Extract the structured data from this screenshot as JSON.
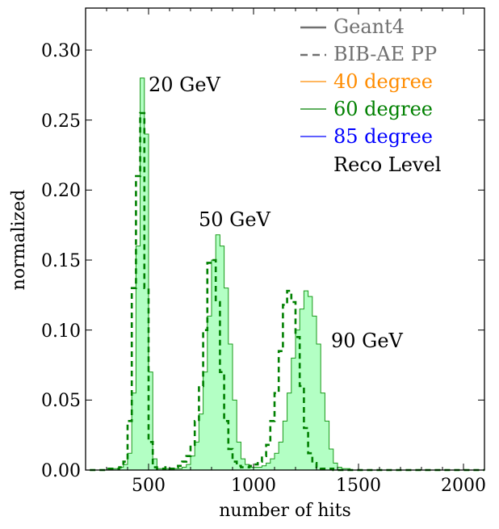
{
  "chart_data": {
    "type": "histogram",
    "xlabel": "number of hits",
    "ylabel": "normalized",
    "xlim": [
      200,
      2100
    ],
    "ylim": [
      0,
      0.33
    ],
    "xticks": [
      500,
      1000,
      1500,
      2000
    ],
    "yticks": [
      0.0,
      0.05,
      0.1,
      0.15,
      0.2,
      0.25,
      0.3
    ],
    "ytick_labels": [
      "0.00",
      "0.05",
      "0.10",
      "0.15",
      "0.20",
      "0.25",
      "0.30"
    ],
    "xtick_labels": [
      "500",
      "1000",
      "1500",
      "2000"
    ],
    "grid": false,
    "legend_position": "top-right",
    "legend": [
      {
        "label": "Geant4",
        "style": "solid",
        "color": "#707070"
      },
      {
        "label": "BIB-AE PP",
        "style": "dashed",
        "color": "#707070"
      },
      {
        "label": "40 degree",
        "style": "solid",
        "color": "#ff8c00"
      },
      {
        "label": "60 degree",
        "style": "solid",
        "color": "#008000"
      },
      {
        "label": "85 degree",
        "style": "solid",
        "color": "#0000ff"
      },
      {
        "label": "Reco Level",
        "style": "none",
        "color": "#000000"
      }
    ],
    "annotations": [
      {
        "text": "20 GeV",
        "x": 490,
        "y": 0.27
      },
      {
        "text": "50 GeV",
        "x": 735,
        "y": 0.173
      },
      {
        "text": "90 GeV",
        "x": 1365,
        "y": 0.087
      }
    ],
    "bin_width": 20,
    "series": [
      {
        "name": "Geant4 60 degree",
        "style": "filled-step",
        "fill_color": "#b3ffc4",
        "line_color": "#1a9a1a",
        "x": [
          220,
          240,
          260,
          280,
          300,
          320,
          340,
          360,
          380,
          400,
          420,
          440,
          460,
          480,
          500,
          520,
          540,
          560,
          580,
          600,
          620,
          640,
          660,
          680,
          700,
          720,
          740,
          760,
          780,
          800,
          820,
          840,
          860,
          880,
          900,
          920,
          940,
          960,
          980,
          1000,
          1020,
          1040,
          1060,
          1080,
          1100,
          1120,
          1140,
          1160,
          1180,
          1200,
          1220,
          1240,
          1260,
          1280,
          1300,
          1320,
          1340,
          1360,
          1380,
          1400,
          1420,
          1440,
          1460,
          1480,
          1500,
          1520,
          1540,
          1560,
          1580,
          1600,
          1620,
          1640,
          1660,
          1680,
          1700,
          1720,
          1740,
          1760,
          1780,
          1800,
          1820,
          1840,
          1860,
          1880,
          1900,
          1920,
          1940,
          1960,
          1980,
          2000,
          2020,
          2040,
          2060,
          2080
        ],
        "values": [
          0,
          0,
          0,
          0,
          0.001,
          0.001,
          0.001,
          0.002,
          0.004,
          0.012,
          0.055,
          0.16,
          0.28,
          0.24,
          0.07,
          0.008,
          0.001,
          0.001,
          0.001,
          0.001,
          0.001,
          0.001,
          0.002,
          0.004,
          0.01,
          0.02,
          0.04,
          0.07,
          0.11,
          0.15,
          0.168,
          0.16,
          0.13,
          0.09,
          0.05,
          0.02,
          0.008,
          0.004,
          0.002,
          0.002,
          0.002,
          0.003,
          0.005,
          0.008,
          0.012,
          0.02,
          0.035,
          0.055,
          0.08,
          0.1,
          0.115,
          0.128,
          0.124,
          0.11,
          0.09,
          0.055,
          0.035,
          0.015,
          0.005,
          0.002,
          0.001,
          0.001,
          0,
          0,
          0,
          0,
          0,
          0,
          0,
          0,
          0,
          0,
          0,
          0,
          0,
          0,
          0,
          0,
          0,
          0,
          0,
          0,
          0,
          0,
          0,
          0,
          0,
          0,
          0,
          0,
          0,
          0,
          0,
          0
        ]
      },
      {
        "name": "BIB-AE PP 60 degree",
        "style": "dashed-step",
        "line_color": "#008000",
        "x": [
          220,
          240,
          260,
          280,
          300,
          320,
          340,
          360,
          380,
          400,
          420,
          440,
          460,
          480,
          500,
          520,
          540,
          560,
          580,
          600,
          620,
          640,
          660,
          680,
          700,
          720,
          740,
          760,
          780,
          800,
          820,
          840,
          860,
          880,
          900,
          920,
          940,
          960,
          980,
          1000,
          1020,
          1040,
          1060,
          1080,
          1100,
          1120,
          1140,
          1160,
          1180,
          1200,
          1220,
          1240,
          1260,
          1280,
          1300,
          1320,
          1340,
          1360,
          1380,
          1400,
          1420,
          1440,
          1460,
          1480,
          1500,
          1520,
          1540,
          1560,
          1580,
          1600,
          1620,
          1640,
          1660,
          1680,
          1700,
          1720,
          1740,
          1760,
          1780,
          1800,
          1820,
          1840,
          1860,
          1880,
          1900,
          1920,
          1940,
          1960,
          1980,
          2000,
          2020,
          2040,
          2060,
          2080
        ],
        "values": [
          0,
          0,
          0,
          0,
          0.001,
          0.001,
          0.001,
          0.002,
          0.006,
          0.035,
          0.13,
          0.21,
          0.255,
          0.13,
          0.02,
          0.002,
          0.001,
          0.001,
          0.002,
          0.001,
          0.002,
          0.003,
          0.006,
          0.01,
          0.018,
          0.035,
          0.06,
          0.1,
          0.148,
          0.15,
          0.12,
          0.07,
          0.035,
          0.015,
          0.006,
          0.003,
          0.002,
          0.002,
          0.003,
          0.004,
          0.006,
          0.01,
          0.018,
          0.035,
          0.055,
          0.085,
          0.118,
          0.128,
          0.12,
          0.095,
          0.06,
          0.03,
          0.012,
          0.005,
          0.002,
          0.001,
          0.001,
          0.001,
          0,
          0,
          0,
          0,
          0,
          0,
          0,
          0,
          0,
          0,
          0,
          0,
          0,
          0,
          0,
          0,
          0,
          0,
          0,
          0,
          0,
          0,
          0,
          0,
          0,
          0,
          0,
          0,
          0,
          0,
          0,
          0,
          0,
          0,
          0,
          0
        ]
      }
    ]
  }
}
